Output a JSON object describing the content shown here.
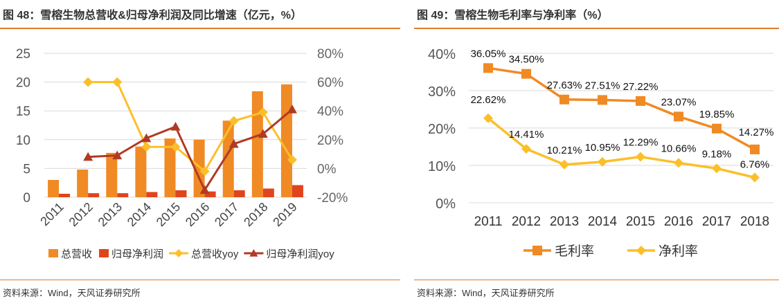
{
  "charts": [
    {
      "title": "图 48：雪榕生物总营收&归母净利润及同比增速（亿元，%）",
      "source": "资料来源：Wind，天风证券研究所"
    },
    {
      "title": "图 49：雪榕生物毛利率与净利率（%）",
      "source": "资料来源：Wind，天风证券研究所"
    }
  ],
  "chart_data": [
    {
      "type": "bar",
      "categories": [
        "2011",
        "2012",
        "2013",
        "2014",
        "2015",
        "2016",
        "2017",
        "2018",
        "2019"
      ],
      "y_left": {
        "ylim": [
          0,
          25
        ],
        "ticks": [
          "0",
          "5",
          "10",
          "15",
          "20",
          "25"
        ]
      },
      "y_right": {
        "ylim": [
          -20,
          80
        ],
        "ticks": [
          "-20%",
          "0%",
          "20%",
          "40%",
          "60%",
          "80%"
        ]
      },
      "grid": true,
      "legend": "bottom",
      "series": [
        {
          "name": "总营收",
          "kind": "bar",
          "axis": "left",
          "color": "#f08a24",
          "values": [
            3.0,
            4.8,
            7.7,
            8.8,
            10.2,
            10.0,
            13.3,
            18.4,
            19.6
          ]
        },
        {
          "name": "归母净利润",
          "kind": "bar",
          "axis": "left",
          "color": "#e0441c",
          "values": [
            0.6,
            0.7,
            0.7,
            0.9,
            1.2,
            1.0,
            1.2,
            1.5,
            2.1
          ]
        },
        {
          "name": "总营收yoy",
          "kind": "line",
          "marker": "diamond",
          "axis": "right",
          "color": "#fbbf2a",
          "values": [
            null,
            60,
            60,
            15,
            15,
            -2,
            33,
            39,
            6
          ]
        },
        {
          "name": "归母净利润yoy",
          "kind": "line",
          "marker": "triangle",
          "axis": "right",
          "color": "#b03a24",
          "values": [
            null,
            8,
            9,
            21,
            29,
            -15,
            17,
            24,
            41
          ]
        }
      ]
    },
    {
      "type": "line",
      "categories": [
        "2011",
        "2012",
        "2013",
        "2014",
        "2015",
        "2016",
        "2017",
        "2018"
      ],
      "ylim": [
        0,
        40
      ],
      "ticks": [
        "0%",
        "10%",
        "20%",
        "30%",
        "40%"
      ],
      "grid": true,
      "legend": "bottom",
      "series": [
        {
          "name": "毛利率",
          "marker": "square",
          "color": "#f08a24",
          "values": [
            36.05,
            34.5,
            27.63,
            27.51,
            27.22,
            23.07,
            19.85,
            14.27
          ],
          "labels": [
            "36.05%",
            "34.50%",
            "27.63%",
            "27.51%",
            "27.22%",
            "23.07%",
            "19.85%",
            "14.27%"
          ]
        },
        {
          "name": "净利率",
          "marker": "diamond",
          "color": "#fbbf2a",
          "values": [
            22.62,
            14.41,
            10.21,
            10.95,
            12.29,
            10.66,
            9.18,
            6.76
          ],
          "labels": [
            "22.62%",
            "14.41%",
            "10.21%",
            "10.95%",
            "12.29%",
            "10.66%",
            "9.18%",
            "6.76%"
          ]
        }
      ]
    }
  ]
}
